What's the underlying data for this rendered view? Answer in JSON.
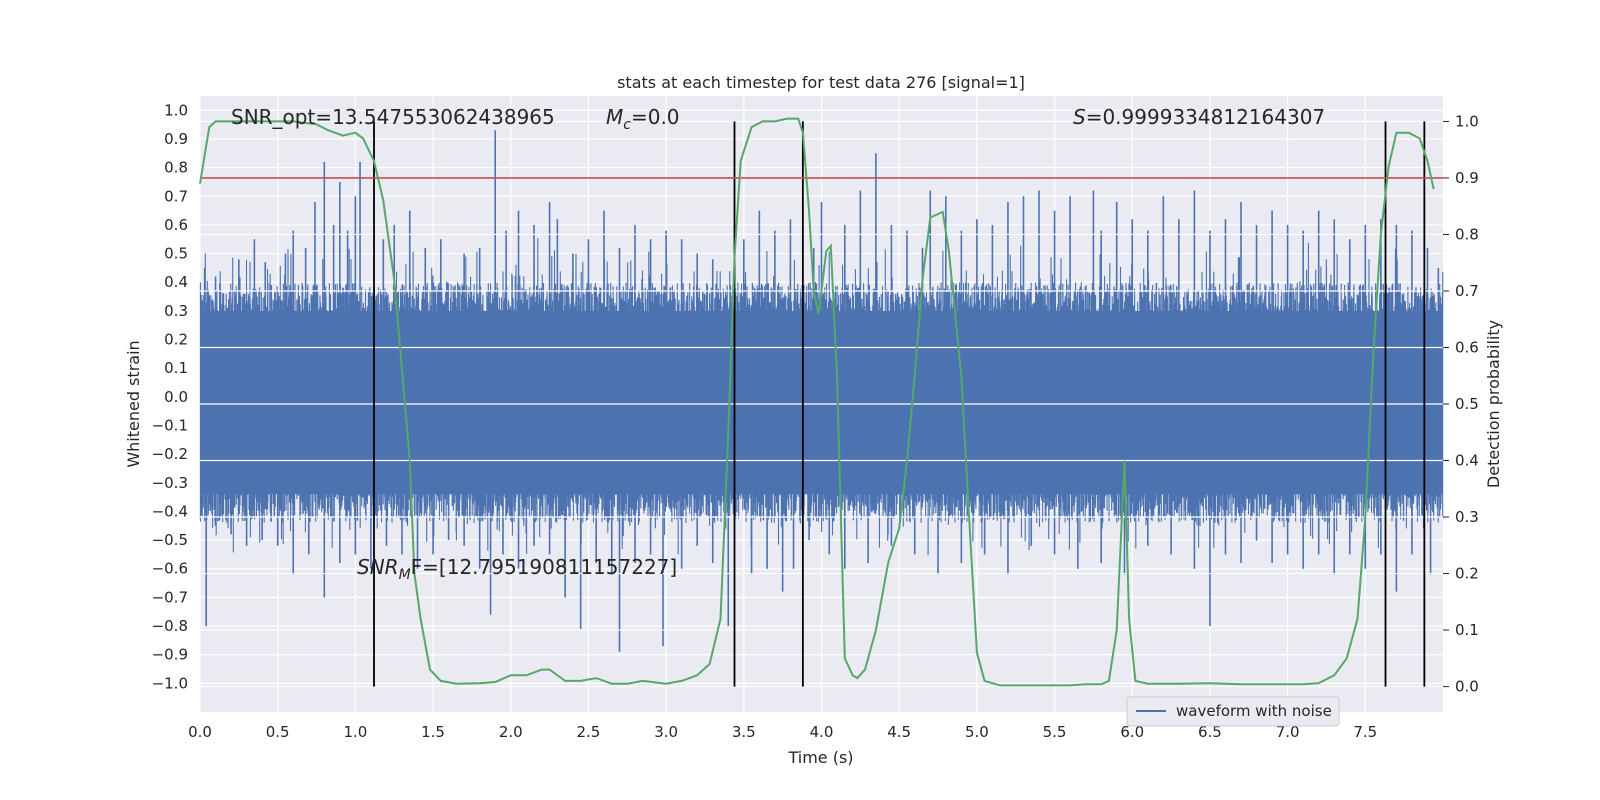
{
  "chart_data": {
    "type": "line",
    "title": "stats at each timestep for test data 276 [signal=1]",
    "xlabel": "Time (s)",
    "ylabel": "Whitened strain",
    "y2label": "Detection probability",
    "xlim": [
      0.0,
      8.0
    ],
    "ylim": [
      -1.1,
      1.05
    ],
    "y2lim": [
      -0.045,
      1.045
    ],
    "xticks": [
      "0.0",
      "0.5",
      "1.0",
      "1.5",
      "2.0",
      "2.5",
      "3.0",
      "3.5",
      "4.0",
      "4.5",
      "5.0",
      "5.5",
      "6.0",
      "6.5",
      "7.0",
      "7.5"
    ],
    "yticks": [
      "1.0",
      "0.9",
      "0.8",
      "0.7",
      "0.6",
      "0.5",
      "0.4",
      "0.3",
      "0.2",
      "0.1",
      "0.0",
      "−0.1",
      "−0.2",
      "−0.3",
      "−0.4",
      "−0.5",
      "−0.6",
      "−0.7",
      "−0.8",
      "−0.9",
      "−1.0"
    ],
    "y2ticks": [
      "1.0",
      "0.9",
      "0.8",
      "0.7",
      "0.6",
      "0.5",
      "0.4",
      "0.3",
      "0.2",
      "0.1",
      "0.0"
    ],
    "legend": {
      "position": "lower-right",
      "entries": [
        "waveform with noise"
      ]
    },
    "threshold": 0.9,
    "segment_boundaries": [
      1.12,
      3.44,
      3.88,
      7.63,
      7.88
    ],
    "annotations": {
      "snr_opt": "SNR_opt=13.547553062438965",
      "mc_symbol": "M",
      "mc_sub": "c",
      "mc_value": "=0.0",
      "s_symbol": "S",
      "s_value": "=0.9999334812164307",
      "snrmf_symbol": "SNR",
      "snrmf_sub": "M",
      "snrmf_value": "F=[12.795190811157227]"
    },
    "series": [
      {
        "name": "waveform with noise",
        "color": "#4c72b0",
        "spikes_pos": [
          [
            0.03,
            0.45
          ],
          [
            0.1,
            0.42
          ],
          [
            0.25,
            0.48
          ],
          [
            0.35,
            0.55
          ],
          [
            0.42,
            0.47
          ],
          [
            0.55,
            0.5
          ],
          [
            0.6,
            0.58
          ],
          [
            0.68,
            0.52
          ],
          [
            0.74,
            0.68
          ],
          [
            0.8,
            0.82
          ],
          [
            0.86,
            0.6
          ],
          [
            0.9,
            0.75
          ],
          [
            0.95,
            0.58
          ],
          [
            1.0,
            0.7
          ],
          [
            1.03,
            0.82
          ],
          [
            1.18,
            0.55
          ],
          [
            1.25,
            0.6
          ],
          [
            1.35,
            0.65
          ],
          [
            1.45,
            0.52
          ],
          [
            1.55,
            0.55
          ],
          [
            1.7,
            0.5
          ],
          [
            1.8,
            0.52
          ],
          [
            1.9,
            0.93
          ],
          [
            1.97,
            0.58
          ],
          [
            2.05,
            0.65
          ],
          [
            2.15,
            0.6
          ],
          [
            2.25,
            0.68
          ],
          [
            2.3,
            0.62
          ],
          [
            2.4,
            0.5
          ],
          [
            2.5,
            0.55
          ],
          [
            2.6,
            0.65
          ],
          [
            2.7,
            0.52
          ],
          [
            2.8,
            0.6
          ],
          [
            2.9,
            0.55
          ],
          [
            3.0,
            0.58
          ],
          [
            3.1,
            0.55
          ],
          [
            3.2,
            0.5
          ],
          [
            3.3,
            0.48
          ],
          [
            3.5,
            0.55
          ],
          [
            3.6,
            0.65
          ],
          [
            3.7,
            0.58
          ],
          [
            3.8,
            0.62
          ],
          [
            3.95,
            0.52
          ],
          [
            4.0,
            0.68
          ],
          [
            4.15,
            0.6
          ],
          [
            4.25,
            0.72
          ],
          [
            4.35,
            0.85
          ],
          [
            4.45,
            0.6
          ],
          [
            4.55,
            0.58
          ],
          [
            4.65,
            0.52
          ],
          [
            4.7,
            0.72
          ],
          [
            4.8,
            0.7
          ],
          [
            4.9,
            0.58
          ],
          [
            5.0,
            0.62
          ],
          [
            5.1,
            0.6
          ],
          [
            5.2,
            0.68
          ],
          [
            5.3,
            0.7
          ],
          [
            5.4,
            0.72
          ],
          [
            5.5,
            0.65
          ],
          [
            5.6,
            0.7
          ],
          [
            5.75,
            0.72
          ],
          [
            5.8,
            0.58
          ],
          [
            5.9,
            0.68
          ],
          [
            6.0,
            0.62
          ],
          [
            6.1,
            0.58
          ],
          [
            6.2,
            0.7
          ],
          [
            6.3,
            0.62
          ],
          [
            6.4,
            0.72
          ],
          [
            6.5,
            0.58
          ],
          [
            6.6,
            0.62
          ],
          [
            6.7,
            0.68
          ],
          [
            6.8,
            0.6
          ],
          [
            6.9,
            0.65
          ],
          [
            7.0,
            0.6
          ],
          [
            7.1,
            0.58
          ],
          [
            7.2,
            0.65
          ],
          [
            7.3,
            0.62
          ],
          [
            7.4,
            0.55
          ],
          [
            7.5,
            0.6
          ],
          [
            7.6,
            0.62
          ],
          [
            7.7,
            0.6
          ],
          [
            7.8,
            0.58
          ],
          [
            7.9,
            0.52
          ],
          [
            7.97,
            0.45
          ]
        ],
        "spikes_neg": [
          [
            0.04,
            -0.8
          ],
          [
            0.1,
            -0.45
          ],
          [
            0.2,
            -0.48
          ],
          [
            0.3,
            -0.52
          ],
          [
            0.4,
            -0.5
          ],
          [
            0.5,
            -0.52
          ],
          [
            0.6,
            -0.62
          ],
          [
            0.7,
            -0.55
          ],
          [
            0.8,
            -0.7
          ],
          [
            0.9,
            -0.58
          ],
          [
            1.0,
            -0.55
          ],
          [
            1.1,
            -0.6
          ],
          [
            1.2,
            -0.52
          ],
          [
            1.3,
            -0.55
          ],
          [
            1.4,
            -0.6
          ],
          [
            1.5,
            -0.55
          ],
          [
            1.6,
            -0.5
          ],
          [
            1.7,
            -0.52
          ],
          [
            1.8,
            -0.6
          ],
          [
            1.87,
            -0.76
          ],
          [
            1.95,
            -0.55
          ],
          [
            2.05,
            -0.6
          ],
          [
            2.15,
            -0.52
          ],
          [
            2.25,
            -0.55
          ],
          [
            2.35,
            -0.7
          ],
          [
            2.45,
            -0.81
          ],
          [
            2.55,
            -0.58
          ],
          [
            2.65,
            -0.62
          ],
          [
            2.7,
            -0.89
          ],
          [
            2.8,
            -0.58
          ],
          [
            2.9,
            -0.55
          ],
          [
            2.98,
            -0.87
          ],
          [
            3.1,
            -0.6
          ],
          [
            3.2,
            -0.52
          ],
          [
            3.3,
            -0.58
          ],
          [
            3.4,
            -0.8
          ],
          [
            3.55,
            -0.62
          ],
          [
            3.65,
            -0.6
          ],
          [
            3.75,
            -0.68
          ],
          [
            3.82,
            -0.6
          ],
          [
            3.92,
            -0.5
          ],
          [
            4.05,
            -0.55
          ],
          [
            4.15,
            -0.6
          ],
          [
            4.3,
            -0.58
          ],
          [
            4.45,
            -0.52
          ],
          [
            4.6,
            -0.55
          ],
          [
            4.75,
            -0.62
          ],
          [
            4.9,
            -0.58
          ],
          [
            5.05,
            -0.55
          ],
          [
            5.2,
            -0.62
          ],
          [
            5.35,
            -0.52
          ],
          [
            5.5,
            -0.55
          ],
          [
            5.65,
            -0.6
          ],
          [
            5.8,
            -0.58
          ],
          [
            5.95,
            -0.62
          ],
          [
            6.1,
            -0.52
          ],
          [
            6.25,
            -0.55
          ],
          [
            6.4,
            -0.6
          ],
          [
            6.5,
            -0.8
          ],
          [
            6.6,
            -0.55
          ],
          [
            6.7,
            -0.58
          ],
          [
            6.8,
            -0.5
          ],
          [
            6.9,
            -0.58
          ],
          [
            7.0,
            -0.55
          ],
          [
            7.1,
            -0.6
          ],
          [
            7.2,
            -0.55
          ],
          [
            7.3,
            -0.62
          ],
          [
            7.4,
            -0.55
          ],
          [
            7.5,
            -0.6
          ],
          [
            7.6,
            -0.55
          ],
          [
            7.7,
            -0.68
          ],
          [
            7.8,
            -0.55
          ],
          [
            7.92,
            -0.62
          ]
        ]
      },
      {
        "name": "detection probability",
        "color": "#55a868",
        "axis": "right",
        "points": [
          [
            0.0,
            0.89
          ],
          [
            0.06,
            0.99
          ],
          [
            0.1,
            1.0
          ],
          [
            0.2,
            1.0
          ],
          [
            0.4,
            1.0
          ],
          [
            0.6,
            1.0
          ],
          [
            0.75,
            0.995
          ],
          [
            0.82,
            0.985
          ],
          [
            0.92,
            0.975
          ],
          [
            1.0,
            0.98
          ],
          [
            1.05,
            0.97
          ],
          [
            1.12,
            0.93
          ],
          [
            1.18,
            0.86
          ],
          [
            1.25,
            0.72
          ],
          [
            1.3,
            0.56
          ],
          [
            1.35,
            0.4
          ],
          [
            1.38,
            0.2
          ],
          [
            1.42,
            0.12
          ],
          [
            1.48,
            0.03
          ],
          [
            1.55,
            0.01
          ],
          [
            1.65,
            0.005
          ],
          [
            1.8,
            0.006
          ],
          [
            1.9,
            0.008
          ],
          [
            2.0,
            0.02
          ],
          [
            2.1,
            0.02
          ],
          [
            2.2,
            0.03
          ],
          [
            2.25,
            0.03
          ],
          [
            2.35,
            0.01
          ],
          [
            2.45,
            0.01
          ],
          [
            2.55,
            0.015
          ],
          [
            2.65,
            0.005
          ],
          [
            2.75,
            0.005
          ],
          [
            2.85,
            0.01
          ],
          [
            3.0,
            0.005
          ],
          [
            3.1,
            0.01
          ],
          [
            3.2,
            0.02
          ],
          [
            3.28,
            0.04
          ],
          [
            3.35,
            0.12
          ],
          [
            3.4,
            0.45
          ],
          [
            3.44,
            0.76
          ],
          [
            3.48,
            0.93
          ],
          [
            3.55,
            0.99
          ],
          [
            3.62,
            1.0
          ],
          [
            3.7,
            1.0
          ],
          [
            3.78,
            1.005
          ],
          [
            3.85,
            1.005
          ],
          [
            3.88,
            0.98
          ],
          [
            3.92,
            0.84
          ],
          [
            3.95,
            0.7
          ],
          [
            3.98,
            0.66
          ],
          [
            4.0,
            0.7
          ],
          [
            4.03,
            0.77
          ],
          [
            4.06,
            0.78
          ],
          [
            4.1,
            0.55
          ],
          [
            4.15,
            0.05
          ],
          [
            4.2,
            0.02
          ],
          [
            4.23,
            0.015
          ],
          [
            4.28,
            0.03
          ],
          [
            4.35,
            0.1
          ],
          [
            4.43,
            0.22
          ],
          [
            4.5,
            0.28
          ],
          [
            4.55,
            0.4
          ],
          [
            4.6,
            0.55
          ],
          [
            4.65,
            0.72
          ],
          [
            4.7,
            0.83
          ],
          [
            4.78,
            0.84
          ],
          [
            4.82,
            0.77
          ],
          [
            4.9,
            0.55
          ],
          [
            4.95,
            0.3
          ],
          [
            5.0,
            0.06
          ],
          [
            5.05,
            0.01
          ],
          [
            5.15,
            0.002
          ],
          [
            5.4,
            0.002
          ],
          [
            5.6,
            0.002
          ],
          [
            5.7,
            0.004
          ],
          [
            5.8,
            0.004
          ],
          [
            5.85,
            0.01
          ],
          [
            5.9,
            0.1
          ],
          [
            5.95,
            0.4
          ],
          [
            5.98,
            0.12
          ],
          [
            6.02,
            0.01
          ],
          [
            6.1,
            0.005
          ],
          [
            6.3,
            0.005
          ],
          [
            6.5,
            0.006
          ],
          [
            6.7,
            0.004
          ],
          [
            6.9,
            0.004
          ],
          [
            7.1,
            0.004
          ],
          [
            7.2,
            0.006
          ],
          [
            7.3,
            0.02
          ],
          [
            7.38,
            0.05
          ],
          [
            7.45,
            0.12
          ],
          [
            7.5,
            0.3
          ],
          [
            7.55,
            0.58
          ],
          [
            7.6,
            0.8
          ],
          [
            7.65,
            0.92
          ],
          [
            7.7,
            0.98
          ],
          [
            7.78,
            0.98
          ],
          [
            7.85,
            0.97
          ],
          [
            7.9,
            0.93
          ],
          [
            7.94,
            0.88
          ]
        ]
      },
      {
        "name": "threshold line",
        "color": "#c44e52",
        "axis": "right",
        "value": 0.9
      }
    ]
  }
}
